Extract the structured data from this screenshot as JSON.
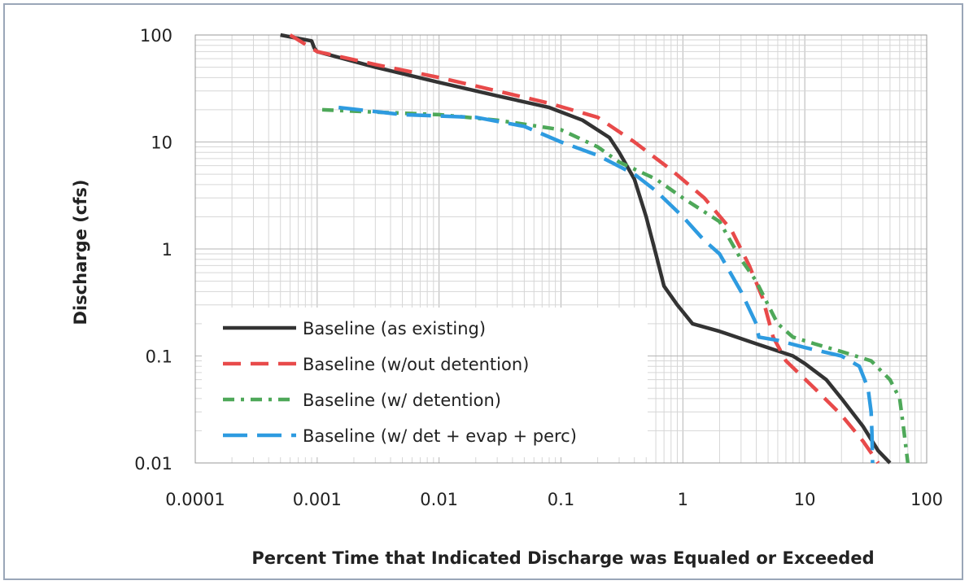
{
  "chart_data": {
    "type": "line",
    "xlabel": "Percent Time that Indicated Discharge was Equaled or Exceeded",
    "ylabel": "Discharge (cfs)",
    "x_scale": "log",
    "y_scale": "log",
    "xlim": [
      0.0001,
      100
    ],
    "ylim": [
      0.01,
      100
    ],
    "x_ticks": [
      "0.0001",
      "0.001",
      "0.01",
      "0.1",
      "1",
      "10",
      "100"
    ],
    "y_ticks": [
      "100",
      "10",
      "1",
      "0.1",
      "0.01"
    ],
    "grid": true,
    "legend_position": "bottom-left",
    "series": [
      {
        "name": "Baseline (as existing)",
        "color": "#333333",
        "dash": "solid",
        "points": [
          [
            0.0005,
            100
          ],
          [
            0.0009,
            88
          ],
          [
            0.00095,
            75
          ],
          [
            0.001,
            70
          ],
          [
            0.003,
            50
          ],
          [
            0.01,
            36
          ],
          [
            0.03,
            27
          ],
          [
            0.08,
            21
          ],
          [
            0.15,
            16
          ],
          [
            0.25,
            11
          ],
          [
            0.3,
            8
          ],
          [
            0.4,
            4.5
          ],
          [
            0.5,
            2
          ],
          [
            0.6,
            0.9
          ],
          [
            0.7,
            0.45
          ],
          [
            0.9,
            0.3
          ],
          [
            1.2,
            0.2
          ],
          [
            2,
            0.17
          ],
          [
            4,
            0.13
          ],
          [
            8,
            0.1
          ],
          [
            10,
            0.085
          ],
          [
            15,
            0.06
          ],
          [
            20,
            0.04
          ],
          [
            30,
            0.022
          ],
          [
            40,
            0.013
          ],
          [
            50,
            0.01
          ]
        ]
      },
      {
        "name": "Baseline (w/out detention)",
        "color": "#e84a4a",
        "dash": "dashed",
        "points": [
          [
            0.0006,
            100
          ],
          [
            0.001,
            70
          ],
          [
            0.003,
            53
          ],
          [
            0.01,
            40
          ],
          [
            0.03,
            30
          ],
          [
            0.08,
            23
          ],
          [
            0.2,
            17
          ],
          [
            0.4,
            10
          ],
          [
            0.8,
            5.5
          ],
          [
            1.5,
            3
          ],
          [
            2.5,
            1.5
          ],
          [
            3.5,
            0.7
          ],
          [
            4.5,
            0.35
          ],
          [
            5.5,
            0.15
          ],
          [
            7,
            0.09
          ],
          [
            12,
            0.05
          ],
          [
            20,
            0.028
          ],
          [
            30,
            0.016
          ],
          [
            40,
            0.01
          ]
        ]
      },
      {
        "name": "Baseline (w/ detention)",
        "color": "#4ea859",
        "dash": "dashdot",
        "points": [
          [
            0.0011,
            20
          ],
          [
            0.003,
            19
          ],
          [
            0.01,
            18
          ],
          [
            0.03,
            16
          ],
          [
            0.1,
            13
          ],
          [
            0.2,
            9
          ],
          [
            0.3,
            6.5
          ],
          [
            0.6,
            4.5
          ],
          [
            1,
            3
          ],
          [
            2,
            1.8
          ],
          [
            3,
            0.8
          ],
          [
            4,
            0.5
          ],
          [
            5,
            0.3
          ],
          [
            6,
            0.2
          ],
          [
            8,
            0.15
          ],
          [
            12,
            0.13
          ],
          [
            20,
            0.11
          ],
          [
            35,
            0.09
          ],
          [
            50,
            0.06
          ],
          [
            60,
            0.04
          ],
          [
            65,
            0.02
          ],
          [
            70,
            0.01
          ]
        ]
      },
      {
        "name": "Baseline (w/ det + evap + perc)",
        "color": "#2e9be0",
        "dash": "longdash",
        "points": [
          [
            0.0015,
            21
          ],
          [
            0.005,
            18
          ],
          [
            0.02,
            17
          ],
          [
            0.05,
            14
          ],
          [
            0.1,
            10
          ],
          [
            0.2,
            7.5
          ],
          [
            0.4,
            5
          ],
          [
            0.6,
            3.5
          ],
          [
            1,
            2
          ],
          [
            1.5,
            1.2
          ],
          [
            2,
            0.9
          ],
          [
            3,
            0.4
          ],
          [
            4,
            0.2
          ],
          [
            4.2,
            0.15
          ],
          [
            6,
            0.14
          ],
          [
            10,
            0.12
          ],
          [
            20,
            0.1
          ],
          [
            28,
            0.08
          ],
          [
            33,
            0.05
          ],
          [
            35,
            0.03
          ],
          [
            35.5,
            0.02
          ],
          [
            36,
            0.01
          ]
        ]
      }
    ]
  }
}
